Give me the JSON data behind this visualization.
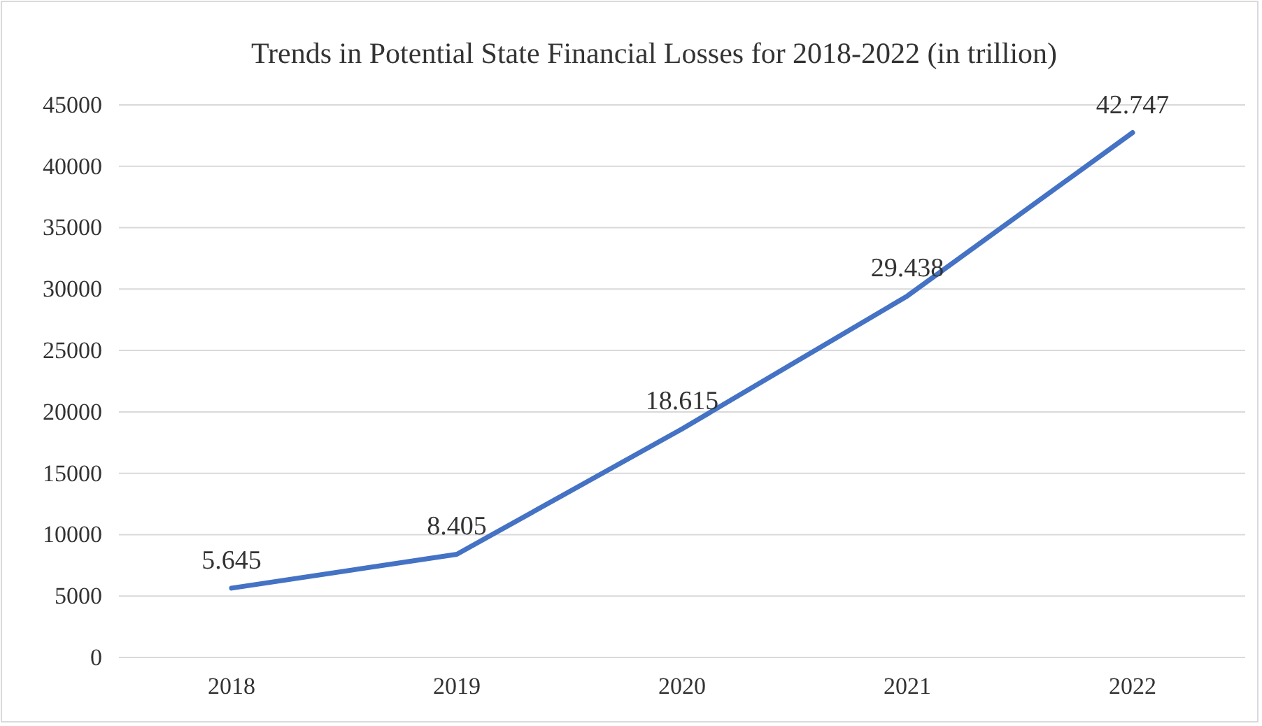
{
  "chart_data": {
    "type": "line",
    "title": "Trends in Potential State Financial Losses for 2018-2022 (in trillion)",
    "categories": [
      "2018",
      "2019",
      "2020",
      "2021",
      "2022"
    ],
    "series": [
      {
        "color": "#4472c4",
        "values": [
          5645,
          8405,
          18615,
          29438,
          42747
        ],
        "value_labels": [
          "5.645",
          "8.405",
          "18.615",
          "29.438",
          "42.747"
        ]
      }
    ],
    "ylim": [
      0,
      45000
    ],
    "yticks": [
      0,
      5000,
      10000,
      15000,
      20000,
      25000,
      30000,
      35000,
      40000,
      45000
    ],
    "grid": "y",
    "line_style": "solid"
  }
}
